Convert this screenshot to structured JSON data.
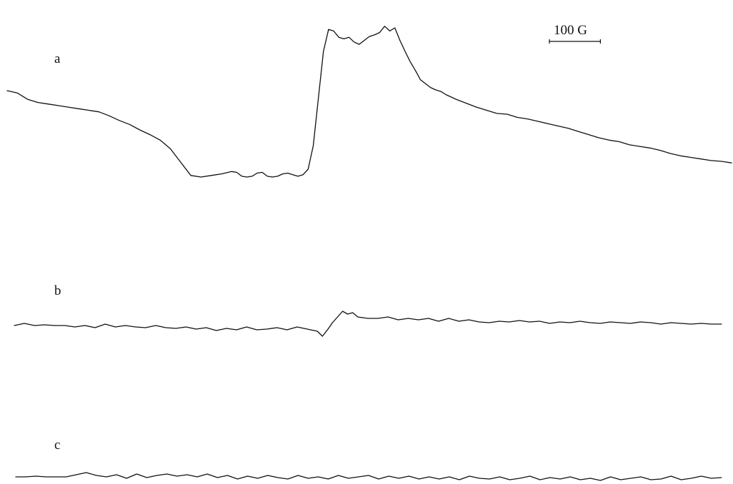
{
  "chart_data": {
    "type": "line",
    "title": "",
    "xlabel": "",
    "ylabel": "",
    "grid": false,
    "scale_bar": {
      "label": "100 G",
      "length_gauss": 100
    },
    "x_domain_gauss": [
      0,
      1420
    ],
    "y_domain": [
      -1,
      1
    ],
    "series": [
      {
        "name": "a",
        "x": [
          0,
          20,
          40,
          60,
          80,
          100,
          120,
          140,
          160,
          180,
          200,
          220,
          240,
          260,
          280,
          300,
          320,
          340,
          360,
          380,
          400,
          420,
          440,
          450,
          460,
          470,
          480,
          490,
          500,
          510,
          520,
          530,
          540,
          550,
          560,
          570,
          580,
          590,
          600,
          610,
          620,
          630,
          640,
          650,
          660,
          670,
          680,
          690,
          700,
          710,
          720,
          730,
          740,
          750,
          760,
          770,
          780,
          790,
          800,
          810,
          820,
          830,
          840,
          850,
          860,
          880,
          900,
          920,
          940,
          960,
          980,
          1000,
          1020,
          1040,
          1060,
          1080,
          1100,
          1120,
          1140,
          1160,
          1180,
          1200,
          1220,
          1240,
          1260,
          1280,
          1300,
          1320,
          1340,
          1360,
          1380,
          1400,
          1420
        ],
        "values": [
          0.1,
          0.07,
          -0.01,
          -0.05,
          -0.07,
          -0.09,
          -0.11,
          -0.13,
          -0.15,
          -0.17,
          -0.22,
          -0.28,
          -0.33,
          -0.4,
          -0.46,
          -0.53,
          -0.64,
          -0.81,
          -0.98,
          -1.0,
          -0.98,
          -0.96,
          -0.93,
          -0.94,
          -0.99,
          -1.0,
          -0.99,
          -0.95,
          -0.94,
          -0.99,
          -1.0,
          -0.99,
          -0.96,
          -0.95,
          -0.97,
          -0.99,
          -0.97,
          -0.9,
          -0.6,
          0.0,
          0.6,
          0.88,
          0.86,
          0.78,
          0.76,
          0.78,
          0.72,
          0.69,
          0.74,
          0.79,
          0.81,
          0.84,
          0.92,
          0.86,
          0.9,
          0.74,
          0.6,
          0.47,
          0.36,
          0.24,
          0.19,
          0.14,
          0.11,
          0.09,
          0.05,
          -0.01,
          -0.06,
          -0.11,
          -0.15,
          -0.19,
          -0.2,
          -0.24,
          -0.26,
          -0.29,
          -0.32,
          -0.35,
          -0.38,
          -0.42,
          -0.46,
          -0.5,
          -0.53,
          -0.55,
          -0.59,
          -0.61,
          -0.63,
          -0.66,
          -0.7,
          -0.73,
          -0.75,
          -0.77,
          -0.79,
          -0.8,
          -0.82
        ]
      },
      {
        "name": "b",
        "x": [
          0,
          20,
          40,
          60,
          80,
          100,
          120,
          140,
          160,
          180,
          200,
          220,
          240,
          260,
          280,
          300,
          320,
          340,
          360,
          380,
          400,
          420,
          440,
          460,
          480,
          500,
          520,
          540,
          560,
          580,
          600,
          610,
          620,
          630,
          640,
          650,
          660,
          670,
          680,
          700,
          720,
          740,
          760,
          780,
          800,
          820,
          840,
          860,
          880,
          900,
          920,
          940,
          960,
          980,
          1000,
          1020,
          1040,
          1060,
          1080,
          1100,
          1120,
          1140,
          1160,
          1180,
          1200,
          1220,
          1240,
          1260,
          1280,
          1300,
          1320,
          1340,
          1360,
          1380,
          1400
        ],
        "values": [
          0.0,
          0.03,
          0.0,
          0.01,
          0.0,
          0.0,
          -0.02,
          0.0,
          -0.03,
          0.02,
          -0.02,
          0.0,
          -0.02,
          -0.03,
          0.0,
          -0.03,
          -0.04,
          -0.02,
          -0.05,
          -0.03,
          -0.07,
          -0.04,
          -0.06,
          -0.02,
          -0.06,
          -0.05,
          -0.03,
          -0.06,
          -0.02,
          -0.05,
          -0.08,
          -0.15,
          -0.06,
          0.04,
          0.12,
          0.2,
          0.16,
          0.18,
          0.12,
          0.1,
          0.1,
          0.12,
          0.08,
          0.1,
          0.08,
          0.1,
          0.06,
          0.1,
          0.06,
          0.08,
          0.05,
          0.04,
          0.06,
          0.05,
          0.07,
          0.05,
          0.06,
          0.03,
          0.05,
          0.04,
          0.06,
          0.04,
          0.03,
          0.05,
          0.04,
          0.03,
          0.05,
          0.04,
          0.02,
          0.04,
          0.03,
          0.02,
          0.03,
          0.02,
          0.02
        ]
      },
      {
        "name": "c",
        "x": [
          0,
          20,
          40,
          60,
          80,
          100,
          120,
          140,
          160,
          180,
          200,
          220,
          240,
          260,
          280,
          300,
          320,
          340,
          360,
          380,
          400,
          420,
          440,
          460,
          480,
          500,
          520,
          540,
          560,
          580,
          600,
          620,
          640,
          660,
          680,
          700,
          720,
          740,
          760,
          780,
          800,
          820,
          840,
          860,
          880,
          900,
          920,
          940,
          960,
          980,
          1000,
          1020,
          1040,
          1060,
          1080,
          1100,
          1120,
          1140,
          1160,
          1180,
          1200,
          1220,
          1240,
          1260,
          1280,
          1300,
          1320,
          1340,
          1360,
          1380,
          1400
        ],
        "values": [
          0.0,
          0.0,
          0.01,
          0.0,
          0.0,
          0.0,
          0.03,
          0.06,
          0.02,
          0.0,
          0.03,
          -0.02,
          0.04,
          -0.01,
          0.02,
          0.04,
          0.01,
          0.03,
          0.0,
          0.04,
          -0.01,
          0.02,
          -0.03,
          0.01,
          -0.02,
          0.02,
          -0.01,
          -0.03,
          0.02,
          -0.02,
          0.0,
          -0.03,
          0.02,
          -0.02,
          0.0,
          0.02,
          -0.03,
          0.01,
          -0.02,
          0.01,
          -0.03,
          0.0,
          -0.03,
          0.0,
          -0.04,
          0.01,
          -0.02,
          -0.03,
          0.0,
          -0.04,
          -0.02,
          0.01,
          -0.04,
          -0.01,
          -0.03,
          0.0,
          -0.04,
          -0.02,
          -0.05,
          0.0,
          -0.04,
          -0.02,
          0.0,
          -0.04,
          -0.03,
          0.01,
          -0.04,
          -0.02,
          0.01,
          -0.02,
          -0.01
        ]
      }
    ]
  }
}
